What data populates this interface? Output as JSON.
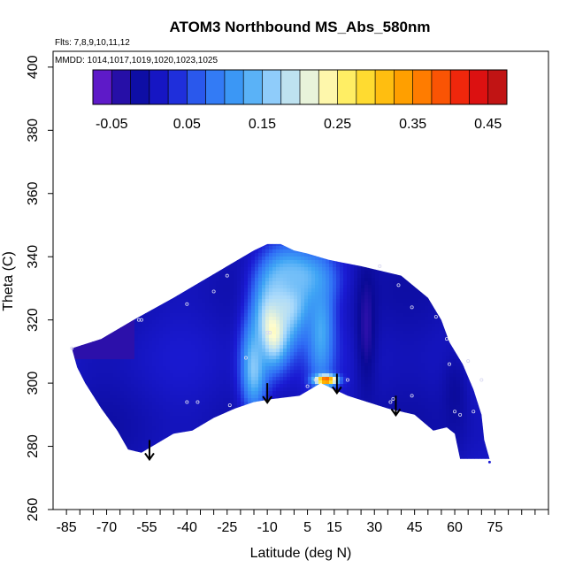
{
  "chart_data": {
    "type": "heatmap",
    "title": "ATOM3 Northbound MS_Abs_580nm",
    "subtitle_flights": "Flts: 7,8,9,10,11,12",
    "subtitle_dates": "MMDD: 1014,1017,1019,1020,1023,1025",
    "xlabel": "Latitude (deg N)",
    "ylabel": "Theta (C)",
    "xlim": [
      -90,
      95
    ],
    "ylim": [
      260,
      405
    ],
    "x_ticks": [
      -85,
      -70,
      -55,
      -40,
      -25,
      -10,
      5,
      15,
      30,
      45,
      60,
      75
    ],
    "x_minor_step": 5,
    "y_ticks": [
      260,
      280,
      300,
      320,
      340,
      360,
      380,
      400
    ],
    "colorbar": {
      "range": [
        -0.075,
        0.475
      ],
      "tick_values": [
        -0.05,
        0.05,
        0.15,
        0.25,
        0.35,
        0.45
      ],
      "tick_labels": [
        "-0.05",
        "0.05",
        "0.15",
        "0.25",
        "0.35",
        "0.45"
      ],
      "step": 0.025,
      "colors": [
        "#7a1fd9",
        "#0a0a96",
        "#1a1ad2",
        "#2f6df5",
        "#3fa5f5",
        "#a9d9fb",
        "#fdfccf",
        "#ffe940",
        "#ffb000",
        "#ff6a00",
        "#ea1010",
        "#b31515"
      ]
    },
    "region_outline": [
      [
        -83,
        311
      ],
      [
        -72,
        314
      ],
      [
        -60,
        320
      ],
      [
        -45,
        327
      ],
      [
        -35,
        332
      ],
      [
        -25,
        337
      ],
      [
        -15,
        342
      ],
      [
        -10,
        344
      ],
      [
        -5,
        344
      ],
      [
        0,
        342
      ],
      [
        5,
        341
      ],
      [
        13,
        339
      ],
      [
        25,
        337
      ],
      [
        40,
        334
      ],
      [
        50,
        327
      ],
      [
        55,
        320
      ],
      [
        58,
        313
      ],
      [
        63,
        306
      ],
      [
        67,
        298
      ],
      [
        70,
        290
      ],
      [
        71,
        282
      ],
      [
        73,
        276
      ],
      [
        62,
        276
      ],
      [
        60,
        284
      ],
      [
        57,
        286
      ],
      [
        52,
        285
      ],
      [
        45,
        290
      ],
      [
        35,
        292
      ],
      [
        20,
        296
      ],
      [
        10,
        300
      ],
      [
        2,
        296
      ],
      [
        -8,
        295
      ],
      [
        -15,
        294
      ],
      [
        -22,
        292
      ],
      [
        -30,
        289
      ],
      [
        -38,
        285
      ],
      [
        -45,
        284
      ],
      [
        -57,
        278
      ],
      [
        -62,
        279
      ],
      [
        -66,
        285
      ],
      [
        -72,
        292
      ],
      [
        -78,
        300
      ],
      [
        -81,
        305
      ],
      [
        -83,
        311
      ]
    ],
    "value_features": [
      {
        "lat": -8,
        "theta": 318,
        "dlat": 6,
        "dtheta": 12,
        "value": 0.27
      },
      {
        "lat": -3,
        "theta": 327,
        "dlat": 10,
        "dtheta": 14,
        "value": 0.2
      },
      {
        "lat": 2,
        "theta": 333,
        "dlat": 12,
        "dtheta": 8,
        "value": 0.15
      },
      {
        "lat": -15,
        "theta": 305,
        "dlat": 5,
        "dtheta": 15,
        "value": 0.16
      },
      {
        "lat": 10,
        "theta": 316,
        "dlat": 5,
        "dtheta": 18,
        "value": 0.13
      },
      {
        "lat": 12,
        "theta": 301,
        "dlat": 4,
        "dtheta": 1.5,
        "value": 0.4
      },
      {
        "lat": 27,
        "theta": 318,
        "dlat": 4,
        "dtheta": 22,
        "value": -0.04
      },
      {
        "lat": 60,
        "theta": 296,
        "dlat": 5,
        "dtheta": 15,
        "value": -0.02
      }
    ],
    "sample_points": [
      [
        -83,
        311
      ],
      [
        -58,
        320
      ],
      [
        -57,
        320
      ],
      [
        -40,
        325
      ],
      [
        -30,
        329
      ],
      [
        -25,
        334
      ],
      [
        -24,
        293
      ],
      [
        -40,
        294
      ],
      [
        -36,
        294
      ],
      [
        -18,
        308
      ],
      [
        -10,
        316
      ],
      [
        -9,
        316
      ],
      [
        5,
        299
      ],
      [
        8,
        301
      ],
      [
        20,
        301
      ],
      [
        32,
        337
      ],
      [
        39,
        331
      ],
      [
        44,
        324
      ],
      [
        53,
        321
      ],
      [
        57,
        314
      ],
      [
        58,
        306
      ],
      [
        65,
        307
      ],
      [
        70,
        301
      ],
      [
        60,
        291
      ],
      [
        62,
        290
      ],
      [
        67,
        291
      ],
      [
        44,
        296
      ],
      [
        37,
        295
      ],
      [
        36,
        294
      ]
    ],
    "arrows": [
      {
        "lat": -54,
        "theta": 282
      },
      {
        "lat": -10,
        "theta": 300
      },
      {
        "lat": 16,
        "theta": 303
      },
      {
        "lat": 38,
        "theta": 296
      }
    ],
    "marker_lat": 73,
    "marker_theta": 275
  }
}
